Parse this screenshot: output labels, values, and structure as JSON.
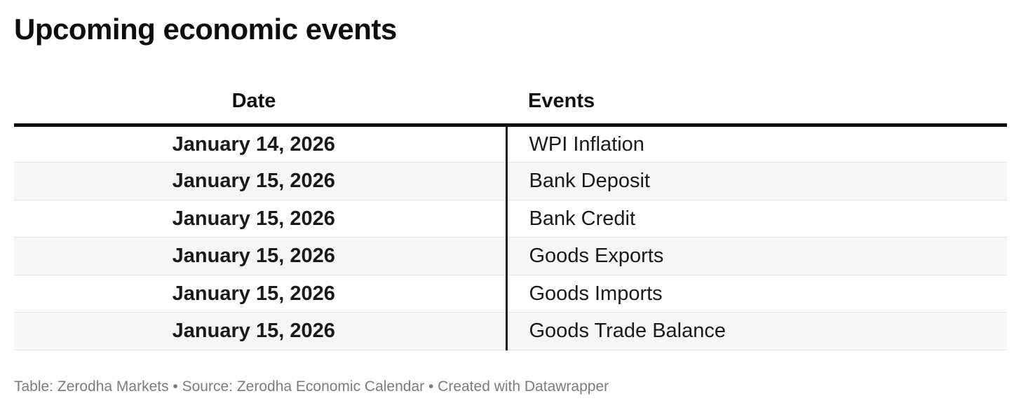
{
  "title": "Upcoming economic events",
  "chart_data": {
    "type": "table",
    "title": "Upcoming economic events",
    "columns": [
      "Date",
      "Events"
    ],
    "rows": [
      [
        "January 14, 2026",
        "WPI Inflation"
      ],
      [
        "January 15, 2026",
        "Bank Deposit"
      ],
      [
        "January 15, 2026",
        "Bank Credit"
      ],
      [
        "January 15, 2026",
        "Goods Exports"
      ],
      [
        "January 15, 2026",
        "Goods Imports"
      ],
      [
        "January 15, 2026",
        "Goods Trade Balance"
      ]
    ],
    "layout_hints": {
      "date_column_alignment": "center",
      "events_column_alignment": "left",
      "zebra_striping": true
    }
  },
  "footer": {
    "text": "Table: Zerodha Markets • Source: Zerodha Economic Calendar • Created with Datawrapper"
  },
  "colors": {
    "background": "#ffffff",
    "title_text": "#0d0d0d",
    "cell_text": "#1a1a1a",
    "header_rule": "#101010",
    "column_divider": "#161616",
    "row_stripe": "#f6f6f6",
    "row_separator": "#e4e4e4",
    "footer_text": "#7c7c7c"
  }
}
